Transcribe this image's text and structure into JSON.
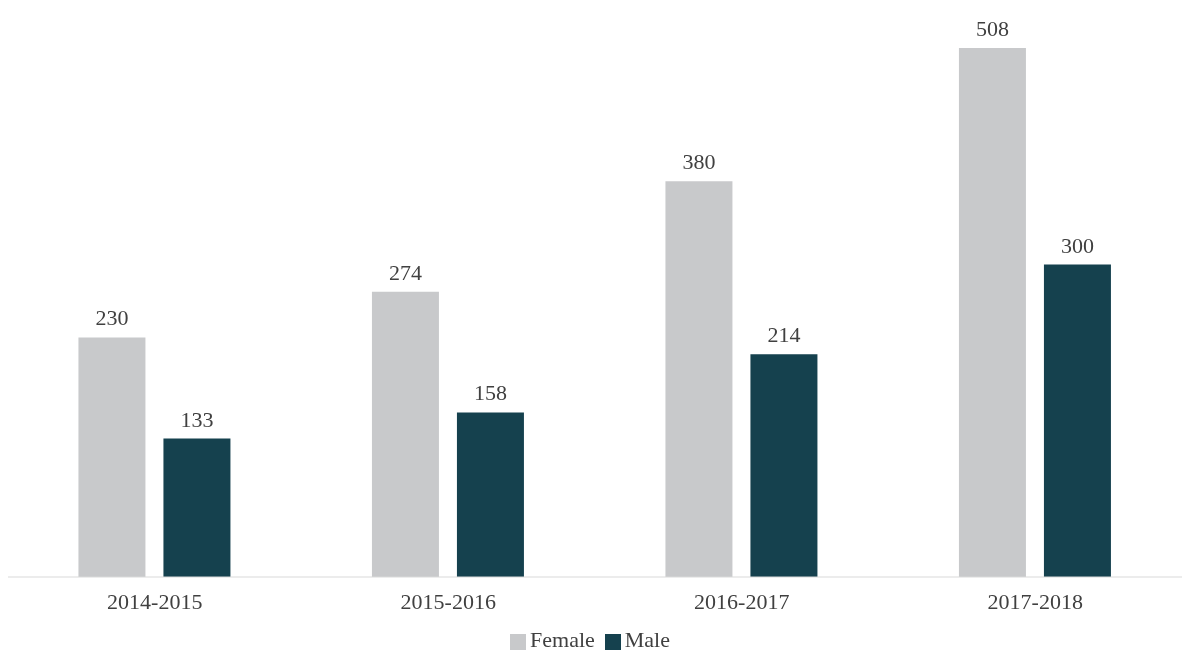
{
  "chart_data": {
    "type": "bar",
    "categories": [
      "2014-2015",
      "2015-2016",
      "2016-2017",
      "2017-2018"
    ],
    "series": [
      {
        "name": "Female",
        "color": "#c8c9cb",
        "values": [
          230,
          274,
          380,
          508
        ]
      },
      {
        "name": "Male",
        "color": "#15414e",
        "values": [
          133,
          158,
          214,
          300
        ]
      }
    ],
    "data_labels": true,
    "legend": "bottom"
  }
}
